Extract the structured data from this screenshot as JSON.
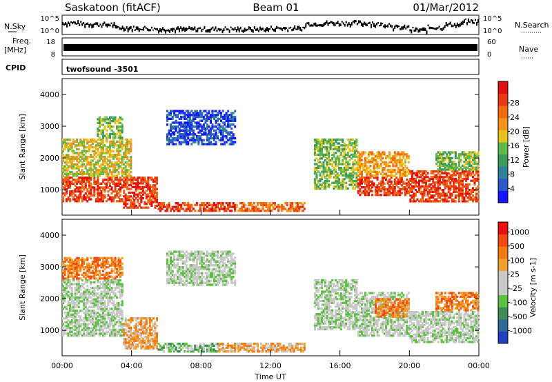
{
  "header": {
    "site": "Saskatoon (fitACF)",
    "beam": "Beam 01",
    "date": "01/Mar/2012"
  },
  "strip": {
    "nsky_label": "N.Sky",
    "nsky_ticks": [
      "10^5",
      "10^0"
    ],
    "nsearch_label": "N.Search",
    "nsearch_ticks": [
      "10^5",
      "10^0"
    ],
    "freq_label": "Freq.",
    "freq_unit": "[MHz]",
    "freq_ticks": [
      "18",
      "8"
    ],
    "nave_label": "Nave",
    "nave_ticks": [
      "60",
      "0"
    ],
    "cpid_label": "CPID",
    "cpid_value": "twofsound -3501"
  },
  "chart_data": [
    {
      "type": "heatmap",
      "name": "power",
      "ylabel": "Slant Range [km]",
      "yticks": [
        1000,
        2000,
        3000,
        4000
      ],
      "ylim": [
        200,
        4500
      ],
      "xlim": [
        0,
        24
      ],
      "colorbar_label": "Power [dB]",
      "colorbar_ticks": [
        "4",
        "8",
        "12",
        "16",
        "20",
        "24",
        "28"
      ],
      "colorbar_colors": [
        "#1414ff",
        "#2c58c8",
        "#2e7f9a",
        "#3a9a5a",
        "#5cb84a",
        "#e6c21c",
        "#f2941c",
        "#f06a10",
        "#e83a10",
        "#e01010"
      ],
      "bands": [
        {
          "t0": 0.0,
          "t1": 3.5,
          "r0": 600,
          "r1": 1400,
          "level": 8
        },
        {
          "t0": 0.0,
          "t1": 4.0,
          "r0": 1400,
          "r1": 2600,
          "level": 5
        },
        {
          "t0": 2.0,
          "t1": 3.5,
          "r0": 2600,
          "r1": 3300,
          "level": 4
        },
        {
          "t0": 3.5,
          "t1": 5.5,
          "r0": 400,
          "r1": 1400,
          "level": 8
        },
        {
          "t0": 5.5,
          "t1": 10.0,
          "r0": 300,
          "r1": 600,
          "level": 8
        },
        {
          "t0": 6.0,
          "t1": 10.0,
          "r0": 2400,
          "r1": 3500,
          "level": 1
        },
        {
          "t0": 10.0,
          "t1": 14.0,
          "r0": 300,
          "r1": 600,
          "level": 7
        },
        {
          "t0": 14.5,
          "t1": 17.0,
          "r0": 1000,
          "r1": 2600,
          "level": 4
        },
        {
          "t0": 17.0,
          "t1": 20.0,
          "r0": 800,
          "r1": 1400,
          "level": 8
        },
        {
          "t0": 17.0,
          "t1": 20.0,
          "r0": 1400,
          "r1": 2200,
          "level": 6
        },
        {
          "t0": 20.0,
          "t1": 24.0,
          "r0": 600,
          "r1": 1600,
          "level": 8
        },
        {
          "t0": 21.5,
          "t1": 24.0,
          "r0": 1600,
          "r1": 2200,
          "level": 4
        }
      ]
    },
    {
      "type": "heatmap",
      "name": "velocity",
      "ylabel": "Slant Range [km]",
      "yticks": [
        1000,
        2000,
        3000,
        4000
      ],
      "ylim": [
        200,
        4500
      ],
      "xlim": [
        0,
        24
      ],
      "xticks": [
        "00:00",
        "04:00",
        "08:00",
        "12:00",
        "16:00",
        "20:00",
        "00:00"
      ],
      "xlabel": "Time UT",
      "colorbar_label": "Velocity [m s-1]",
      "colorbar_ticks": [
        "1000",
        "500",
        "100",
        "25",
        "-25",
        "-100",
        "-500",
        "-1000"
      ],
      "colorbar_colors": [
        "#2040c0",
        "#2c6a9a",
        "#3c8c5a",
        "#5cc040",
        "#c8c8c8",
        "#c8c8c8",
        "#f0a030",
        "#f07a10",
        "#f04a10",
        "#e81010"
      ],
      "bands": [
        {
          "t0": 0.0,
          "t1": 3.5,
          "r0": 800,
          "r1": 2600,
          "level": 4
        },
        {
          "t0": 0.0,
          "t1": 3.5,
          "r0": 2600,
          "r1": 3300,
          "level": 7
        },
        {
          "t0": 3.5,
          "t1": 5.5,
          "r0": 400,
          "r1": 1400,
          "level": 6
        },
        {
          "t0": 5.5,
          "t1": 9.0,
          "r0": 300,
          "r1": 600,
          "level": 3
        },
        {
          "t0": 6.0,
          "t1": 10.0,
          "r0": 2400,
          "r1": 3500,
          "level": 4
        },
        {
          "t0": 9.0,
          "t1": 14.0,
          "r0": 300,
          "r1": 600,
          "level": 6
        },
        {
          "t0": 14.5,
          "t1": 17.0,
          "r0": 1000,
          "r1": 2600,
          "level": 4
        },
        {
          "t0": 17.0,
          "t1": 20.0,
          "r0": 800,
          "r1": 2200,
          "level": 4
        },
        {
          "t0": 18.0,
          "t1": 20.0,
          "r0": 1400,
          "r1": 2000,
          "level": 7
        },
        {
          "t0": 20.0,
          "t1": 24.0,
          "r0": 600,
          "r1": 1600,
          "level": 4
        },
        {
          "t0": 21.5,
          "t1": 24.0,
          "r0": 1600,
          "r1": 2200,
          "level": 7
        }
      ]
    }
  ],
  "strip_series": {
    "nsky_level": [
      0.6,
      0.55,
      0.5,
      0.3,
      0.25,
      0.2,
      0.2,
      0.2,
      0.2,
      0.2,
      0.2,
      0.2,
      0.25,
      0.25,
      0.55,
      0.6,
      0.6,
      0.6,
      0.5,
      0.3,
      0.15,
      0.3,
      0.5,
      0.7,
      0.6
    ],
    "freq_level": 0.5
  }
}
